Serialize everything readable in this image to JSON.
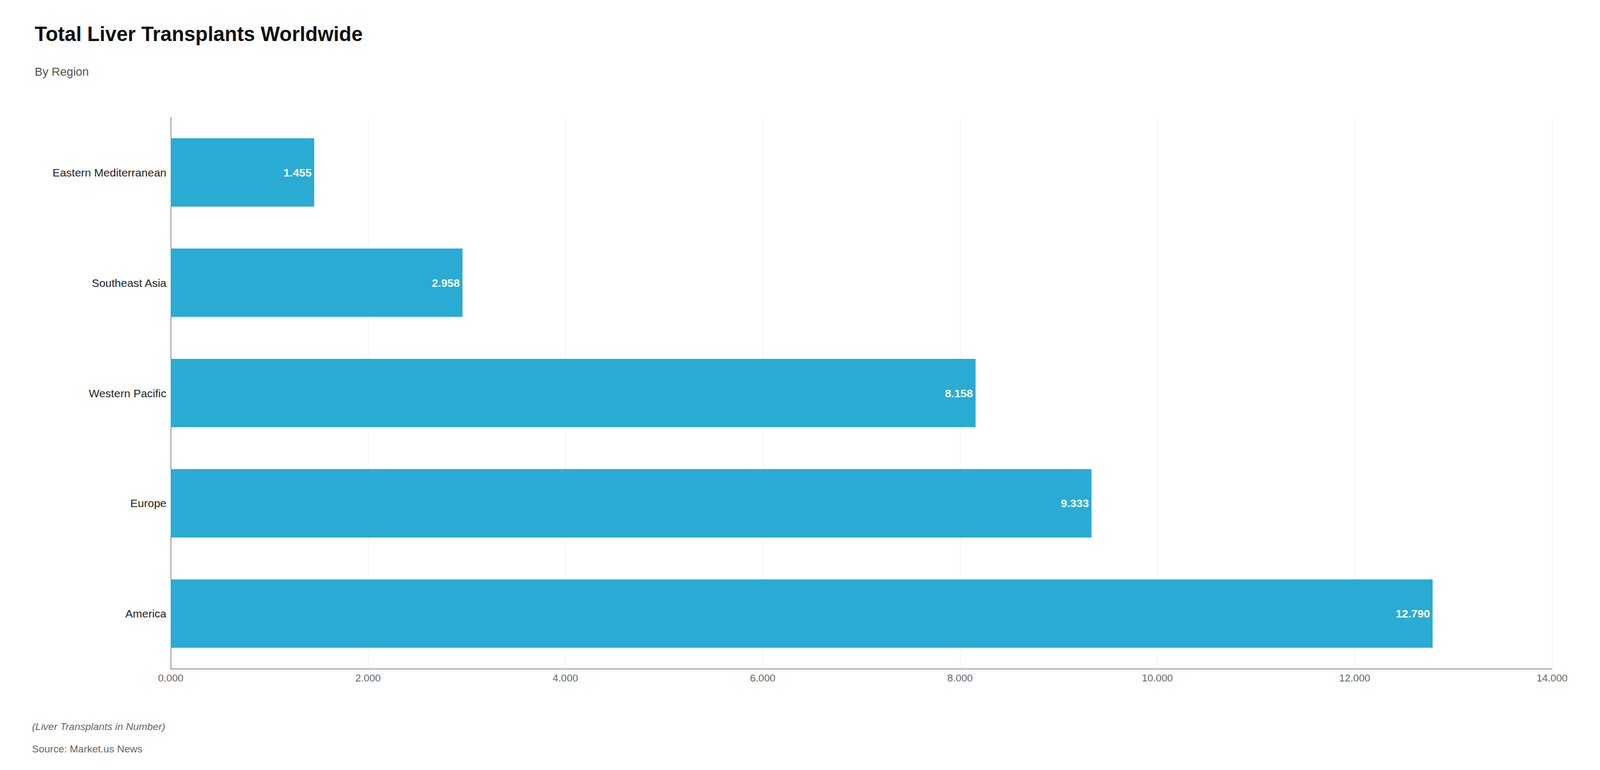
{
  "chart_data": {
    "type": "bar",
    "orientation": "horizontal",
    "title": "Total Liver Transplants Worldwide",
    "subtitle": "By Region",
    "annotations": [
      "(Liver Transplants in Number)",
      "Source: Market.us News"
    ],
    "categories": [
      "America",
      "Europe",
      "Western Pacific",
      "Southeast Asia",
      "Eastern Mediterranean"
    ],
    "values": [
      12790,
      9333,
      8158,
      2958,
      1455
    ],
    "value_labels": [
      "12.790",
      "9.333",
      "8.158",
      "2.958",
      "1.455"
    ],
    "data_labels": true,
    "color": "#29ABD4",
    "xlim": [
      0,
      14000
    ],
    "xticks": [
      {
        "value": 0,
        "label": "0.000"
      },
      {
        "value": 2000,
        "label": "2.000"
      },
      {
        "value": 4000,
        "label": "4.000"
      },
      {
        "value": 6000,
        "label": "6.000"
      },
      {
        "value": 8000,
        "label": "8.000"
      },
      {
        "value": 10000,
        "label": "10.000"
      },
      {
        "value": 12000,
        "label": "12.000"
      },
      {
        "value": 14000,
        "label": "14.000"
      }
    ],
    "grid": true
  }
}
